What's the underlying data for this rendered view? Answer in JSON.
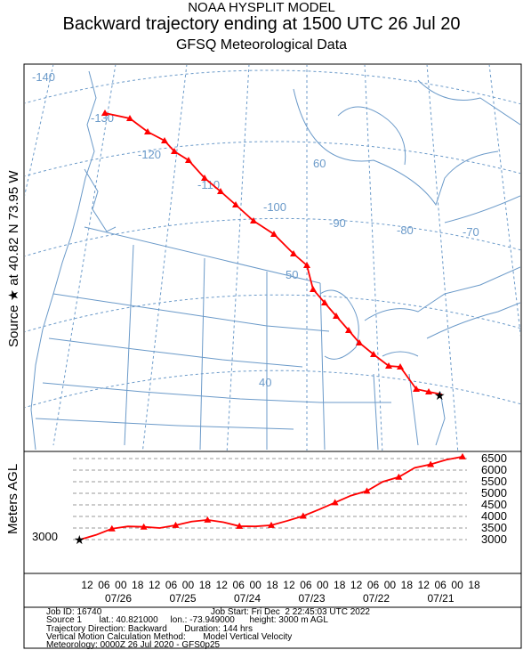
{
  "title": {
    "line1": "NOAA HYSPLIT MODEL",
    "line2": "Backward trajectory ending at 1500 UTC 26 Jul 20",
    "line3": "GFSQ Meteorological Data"
  },
  "source_label": "Source ★ at    40.82 N   73.95 W",
  "height_axis_label": "Meters AGL",
  "map": {
    "lon_labels": [
      "-140",
      "-130",
      "-120",
      "-110",
      "-100",
      "-90",
      "-80",
      "-70"
    ],
    "lat_labels": [
      "60",
      "50",
      "40"
    ]
  },
  "chart_data": {
    "type": "line",
    "title": "Backward trajectory ending at 1500 UTC 26 Jul 20",
    "ylabel": "Meters AGL",
    "y_ticks": [
      3000,
      3500,
      4000,
      4500,
      5000,
      5500,
      6000,
      6500
    ],
    "start_height_label": "3000",
    "time_tick_labels": [
      "12",
      "06",
      "00",
      "18",
      "12",
      "06",
      "00",
      "18",
      "12",
      "06",
      "00",
      "18",
      "12",
      "06",
      "00",
      "18",
      "12",
      "06",
      "00",
      "18",
      "12",
      "06",
      "00",
      "18"
    ],
    "date_labels": [
      "07/26",
      "07/25",
      "07/24",
      "07/23",
      "07/22",
      "07/21"
    ],
    "series": [
      {
        "color": "#ff0000",
        "x_hours_back": [
          0,
          6,
          12,
          18,
          24,
          30,
          36,
          42,
          48,
          54,
          60,
          66,
          72,
          78,
          84,
          90,
          96,
          102,
          108,
          114,
          120,
          126,
          132,
          138,
          144
        ],
        "values": [
          3000,
          3200,
          3470,
          3570,
          3550,
          3500,
          3620,
          3780,
          3850,
          3750,
          3580,
          3570,
          3620,
          3810,
          4020,
          4300,
          4600,
          4900,
          5100,
          5500,
          5700,
          6100,
          6250,
          6450,
          6580
        ]
      }
    ]
  },
  "info": {
    "job_id": "Job ID: 16740",
    "job_start": "Job Start: Fri Dec  2 22:45:03 UTC 2022",
    "source_line": "Source 1       lat.: 40.821000     lon.: -73.949000      height: 3000 m AGL",
    "direction": "Trajectory Direction: Backward       Duration: 144 hrs",
    "vertical": "Vertical Motion Calculation Method:       Model Vertical Velocity",
    "meteorology": "Meteorology: 0000Z 26 Jul 2020 - GFS0p25"
  },
  "colors": {
    "trajectory": "#ff0000",
    "map_lines": "#6b9ac9",
    "grid": "#999999"
  }
}
